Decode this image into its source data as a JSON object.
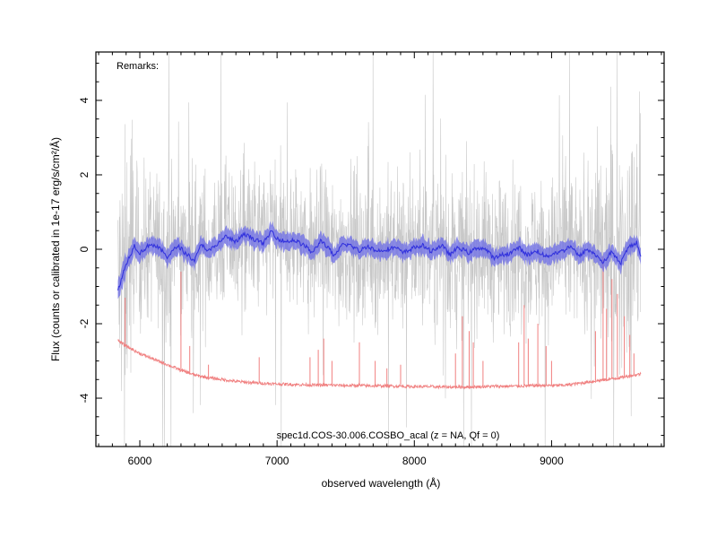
{
  "chart_data": {
    "type": "line",
    "remarks_label": "Remarks:",
    "annotation": "spec1d.COS-30.006.COSBO_acal (z =   NA, Qf = 0)",
    "xlabel": "observed wavelength (Å)",
    "ylabel": "Flux (counts or calibrated in 1e-17 erg/s/cm²/Å)",
    "xlim": [
      5680,
      9820
    ],
    "ylim": [
      -5.3,
      5.3
    ],
    "xticks": [
      6000,
      7000,
      8000,
      9000
    ],
    "xtick_labels": [
      "6000",
      "7000",
      "8000",
      "9000"
    ],
    "yticks": [
      -4,
      -2,
      0,
      2,
      4
    ],
    "ytick_labels": [
      "-4",
      "-2",
      "0",
      "2",
      "4"
    ],
    "grid": false,
    "colors": {
      "raw": "#c8c8c8",
      "smoothed_line": "#3333dd",
      "smoothed_band": "#6b6be6",
      "sky": "#f08080"
    },
    "series": [
      {
        "name": "",
        "role": "raw flux (noisy, gray)",
        "x_range": [
          5840,
          9650
        ],
        "typical_range": [
          -3.5,
          3.5
        ]
      },
      {
        "name": "",
        "role": "smoothed flux with error band (blue)",
        "x": [
          5840,
          5900,
          5960,
          6000,
          6080,
          6150,
          6200,
          6280,
          6330,
          6400,
          6450,
          6500,
          6560,
          6620,
          6700,
          6760,
          6820,
          6900,
          6960,
          7000,
          7060,
          7120,
          7200,
          7260,
          7320,
          7380,
          7420,
          7480,
          7540,
          7600,
          7660,
          7720,
          7800,
          7860,
          7920,
          8000,
          8060,
          8120,
          8200,
          8260,
          8320,
          8400,
          8460,
          8520,
          8580,
          8640,
          8700,
          8760,
          8820,
          8900,
          8960,
          9020,
          9080,
          9140,
          9200,
          9260,
          9320,
          9380,
          9440,
          9500,
          9560,
          9620,
          9650
        ],
        "y": [
          -1.1,
          -0.4,
          0.1,
          -0.1,
          0.15,
          0.0,
          -0.2,
          0.1,
          -0.1,
          -0.3,
          0.15,
          -0.05,
          0.1,
          0.35,
          0.2,
          0.4,
          0.3,
          0.15,
          0.5,
          0.3,
          0.2,
          0.25,
          0.1,
          -0.1,
          0.25,
          0.0,
          -0.2,
          0.15,
          0.1,
          -0.05,
          0.1,
          -0.05,
          0.0,
          0.05,
          -0.1,
          0.05,
          0.1,
          -0.05,
          0.1,
          -0.15,
          0.05,
          -0.1,
          0.05,
          0.0,
          -0.25,
          -0.15,
          -0.1,
          0.05,
          -0.15,
          -0.05,
          -0.2,
          -0.1,
          -0.05,
          0.1,
          -0.2,
          0.0,
          -0.15,
          -0.35,
          -0.05,
          -0.4,
          0.05,
          0.2,
          -0.25
        ],
        "band_halfwidth": 0.22
      },
      {
        "name": "",
        "role": "sky spectrum (red, offset)",
        "x": [
          5840,
          5900,
          6000,
          6100,
          6200,
          6300,
          6400,
          6500,
          6600,
          6700,
          6800,
          6900,
          7000,
          7100,
          7200,
          7300,
          7400,
          7500,
          7600,
          7700,
          7800,
          7900,
          8000,
          8100,
          8200,
          8300,
          8400,
          8500,
          8600,
          8700,
          8800,
          8900,
          9000,
          9100,
          9200,
          9300,
          9400,
          9500,
          9600,
          9650
        ],
        "y": [
          -2.45,
          -2.6,
          -2.8,
          -2.95,
          -3.1,
          -3.25,
          -3.38,
          -3.45,
          -3.5,
          -3.55,
          -3.58,
          -3.6,
          -3.62,
          -3.63,
          -3.64,
          -3.65,
          -3.65,
          -3.66,
          -3.66,
          -3.67,
          -3.67,
          -3.68,
          -3.69,
          -3.69,
          -3.7,
          -3.7,
          -3.7,
          -3.69,
          -3.68,
          -3.68,
          -3.67,
          -3.66,
          -3.66,
          -3.65,
          -3.6,
          -3.55,
          -3.5,
          -3.45,
          -3.38,
          -3.35
        ],
        "emission_lines": [
          {
            "x": 5893,
            "peak": -1.3
          },
          {
            "x": 6300,
            "peak": -0.6
          },
          {
            "x": 6364,
            "peak": -2.6
          },
          {
            "x": 6500,
            "peak": -3.1
          },
          {
            "x": 6870,
            "peak": -2.9
          },
          {
            "x": 7240,
            "peak": -2.9
          },
          {
            "x": 7300,
            "peak": -2.7
          },
          {
            "x": 7340,
            "peak": -2.4
          },
          {
            "x": 7400,
            "peak": -3.0
          },
          {
            "x": 7600,
            "peak": -2.5
          },
          {
            "x": 7715,
            "peak": -3.0
          },
          {
            "x": 7800,
            "peak": -3.2
          },
          {
            "x": 7900,
            "peak": -3.1
          },
          {
            "x": 8300,
            "peak": -2.8
          },
          {
            "x": 8350,
            "peak": -1.8
          },
          {
            "x": 8400,
            "peak": -2.2
          },
          {
            "x": 8430,
            "peak": -2.5
          },
          {
            "x": 8500,
            "peak": -3.0
          },
          {
            "x": 8760,
            "peak": -2.5
          },
          {
            "x": 8800,
            "peak": -1.5
          },
          {
            "x": 8830,
            "peak": -2.4
          },
          {
            "x": 8900,
            "peak": -2.0
          },
          {
            "x": 8960,
            "peak": -2.6
          },
          {
            "x": 9000,
            "peak": -3.0
          },
          {
            "x": 9320,
            "peak": -2.2
          },
          {
            "x": 9375,
            "peak": -0.2
          },
          {
            "x": 9400,
            "peak": -1.6
          },
          {
            "x": 9440,
            "peak": -0.8
          },
          {
            "x": 9480,
            "peak": -1.2
          },
          {
            "x": 9530,
            "peak": -1.8
          },
          {
            "x": 9570,
            "peak": -2.3
          },
          {
            "x": 9600,
            "peak": -2.8
          }
        ]
      }
    ]
  }
}
